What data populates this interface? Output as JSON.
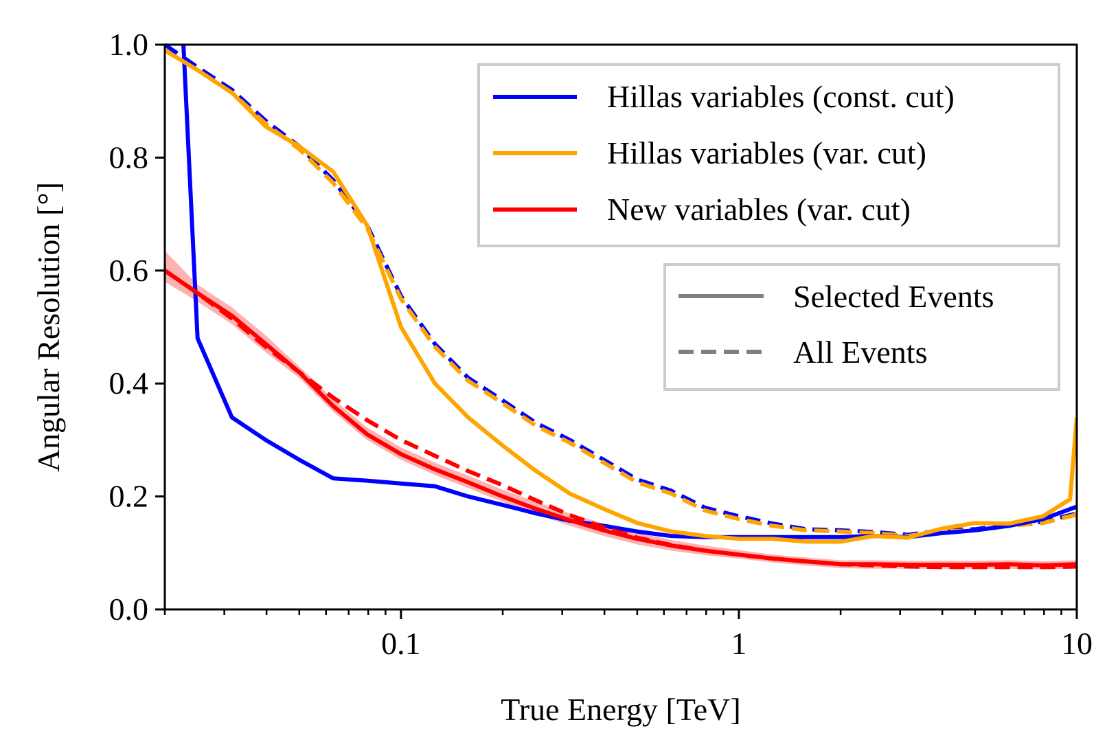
{
  "chart_data": {
    "type": "line",
    "xscale": "log",
    "xlabel": "True Energy [TeV]",
    "ylabel": "Angular Resolution [°]",
    "xlim": [
      0.02,
      10
    ],
    "ylim": [
      0.0,
      1.0
    ],
    "x_ticks": [
      {
        "value": 0.1,
        "label": "0.1"
      },
      {
        "value": 1,
        "label": "1"
      },
      {
        "value": 10,
        "label": "10"
      }
    ],
    "y_ticks": [
      {
        "value": 0.0,
        "label": "0.0"
      },
      {
        "value": 0.2,
        "label": "0.2"
      },
      {
        "value": 0.4,
        "label": "0.4"
      },
      {
        "value": 0.6,
        "label": "0.6"
      },
      {
        "value": 0.8,
        "label": "0.8"
      },
      {
        "value": 1.0,
        "label": "1.0"
      }
    ],
    "legend_methods": [
      {
        "label": "Hillas variables (const. cut)",
        "color": "#0000ff"
      },
      {
        "label": "Hillas variables (var. cut)",
        "color": "#ffa500"
      },
      {
        "label": "New variables (var. cut)",
        "color": "#ff0000"
      }
    ],
    "legend_styles": [
      {
        "label": "Selected Events",
        "style": "solid"
      },
      {
        "label": "All Events",
        "style": "dashed"
      }
    ],
    "series": [
      {
        "name": "Hillas variables (const. cut) - All Events",
        "color": "#0000ff",
        "style": "dashed",
        "x": [
          0.02,
          0.025,
          0.0316,
          0.0398,
          0.05,
          0.063,
          0.0794,
          0.1,
          0.126,
          0.158,
          0.2,
          0.251,
          0.316,
          0.398,
          0.5,
          0.631,
          0.794,
          1.0,
          1.26,
          1.58,
          2.0,
          2.51,
          3.16,
          3.98,
          5.0,
          6.31,
          7.94,
          10.0
        ],
        "values": [
          1.0,
          0.96,
          0.92,
          0.865,
          0.82,
          0.76,
          0.68,
          0.555,
          0.47,
          0.41,
          0.37,
          0.33,
          0.3,
          0.265,
          0.23,
          0.21,
          0.18,
          0.165,
          0.152,
          0.142,
          0.14,
          0.137,
          0.132,
          0.14,
          0.142,
          0.15,
          0.155,
          0.17
        ]
      },
      {
        "name": "Hillas variables (var. cut) - All Events",
        "color": "#ffa500",
        "style": "dashed",
        "x": [
          0.02,
          0.025,
          0.0316,
          0.0398,
          0.05,
          0.063,
          0.0794,
          0.1,
          0.126,
          0.158,
          0.2,
          0.251,
          0.316,
          0.398,
          0.5,
          0.631,
          0.794,
          1.0,
          1.26,
          1.58,
          2.0,
          2.51,
          3.16,
          3.98,
          5.0,
          6.31,
          7.94,
          10.0
        ],
        "values": [
          0.99,
          0.955,
          0.915,
          0.86,
          0.815,
          0.755,
          0.675,
          0.55,
          0.465,
          0.405,
          0.365,
          0.325,
          0.295,
          0.26,
          0.225,
          0.205,
          0.175,
          0.16,
          0.148,
          0.14,
          0.138,
          0.135,
          0.13,
          0.138,
          0.14,
          0.148,
          0.153,
          0.168
        ]
      },
      {
        "name": "Hillas variables (const. cut) - Selected Events",
        "color": "#0000ff",
        "style": "solid",
        "x": [
          0.0227,
          0.025,
          0.0316,
          0.0398,
          0.05,
          0.063,
          0.0794,
          0.1,
          0.126,
          0.158,
          0.2,
          0.251,
          0.316,
          0.398,
          0.5,
          0.631,
          0.794,
          1.0,
          1.26,
          1.58,
          2.0,
          2.51,
          3.16,
          3.98,
          5.0,
          6.31,
          7.94,
          10.0
        ],
        "values": [
          1.0,
          0.48,
          0.34,
          0.3,
          0.265,
          0.232,
          0.228,
          0.223,
          0.218,
          0.2,
          0.185,
          0.17,
          0.157,
          0.148,
          0.138,
          0.13,
          0.128,
          0.128,
          0.128,
          0.128,
          0.128,
          0.13,
          0.128,
          0.135,
          0.14,
          0.148,
          0.16,
          0.182
        ]
      },
      {
        "name": "Hillas variables (var. cut) - Selected Events",
        "color": "#ffa500",
        "style": "solid",
        "x": [
          0.02,
          0.025,
          0.0316,
          0.0398,
          0.05,
          0.063,
          0.0794,
          0.1,
          0.126,
          0.158,
          0.2,
          0.251,
          0.316,
          0.398,
          0.5,
          0.631,
          0.794,
          1.0,
          1.26,
          1.58,
          2.0,
          2.51,
          3.16,
          3.98,
          5.0,
          6.31,
          7.94,
          9.55,
          10.0
        ],
        "values": [
          0.99,
          0.955,
          0.915,
          0.855,
          0.82,
          0.775,
          0.68,
          0.5,
          0.4,
          0.34,
          0.29,
          0.245,
          0.205,
          0.178,
          0.153,
          0.138,
          0.13,
          0.125,
          0.125,
          0.12,
          0.12,
          0.13,
          0.127,
          0.143,
          0.153,
          0.152,
          0.165,
          0.195,
          0.34
        ]
      },
      {
        "name": "New variables (var. cut) - Selected Events",
        "color": "#ff0000",
        "style": "solid",
        "x": [
          0.02,
          0.025,
          0.0316,
          0.0398,
          0.05,
          0.063,
          0.0794,
          0.1,
          0.126,
          0.158,
          0.2,
          0.251,
          0.316,
          0.398,
          0.5,
          0.631,
          0.794,
          1.0,
          1.26,
          1.58,
          2.0,
          2.51,
          3.16,
          3.98,
          5.0,
          6.31,
          7.94,
          10.0
        ],
        "values": [
          0.6,
          0.56,
          0.52,
          0.47,
          0.42,
          0.36,
          0.31,
          0.275,
          0.248,
          0.225,
          0.2,
          0.178,
          0.158,
          0.14,
          0.125,
          0.113,
          0.104,
          0.097,
          0.09,
          0.085,
          0.08,
          0.08,
          0.079,
          0.079,
          0.079,
          0.08,
          0.078,
          0.08
        ]
      },
      {
        "name": "New variables (var. cut) - All Events",
        "color": "#ff0000",
        "style": "dashed",
        "x": [
          0.02,
          0.025,
          0.0316,
          0.0398,
          0.05,
          0.063,
          0.0794,
          0.1,
          0.126,
          0.158,
          0.2,
          0.251,
          0.316,
          0.398,
          0.5,
          0.631,
          0.794,
          1.0,
          1.26,
          1.58,
          2.0,
          2.51,
          3.16,
          3.98,
          5.0,
          6.31,
          7.94,
          10.0
        ],
        "values": [
          0.6,
          0.56,
          0.515,
          0.465,
          0.42,
          0.375,
          0.335,
          0.3,
          0.272,
          0.245,
          0.22,
          0.193,
          0.167,
          0.145,
          0.127,
          0.114,
          0.104,
          0.097,
          0.09,
          0.085,
          0.08,
          0.078,
          0.076,
          0.075,
          0.075,
          0.075,
          0.075,
          0.076
        ]
      }
    ],
    "red_band": {
      "x": [
        0.02,
        0.025,
        0.0316,
        0.0398,
        0.05,
        0.063,
        0.0794,
        0.1,
        0.126,
        0.158,
        0.2,
        0.251,
        0.316,
        0.398,
        0.5,
        0.631,
        0.794,
        1.0,
        1.26,
        1.58,
        2.0,
        2.51,
        3.16,
        3.98,
        5.0,
        6.31,
        7.94,
        10.0
      ],
      "lower": [
        0.58,
        0.545,
        0.505,
        0.455,
        0.41,
        0.35,
        0.3,
        0.265,
        0.238,
        0.215,
        0.19,
        0.168,
        0.148,
        0.13,
        0.115,
        0.104,
        0.096,
        0.09,
        0.083,
        0.078,
        0.073,
        0.072,
        0.072,
        0.072,
        0.072,
        0.072,
        0.071,
        0.072
      ],
      "upper": [
        0.635,
        0.575,
        0.535,
        0.485,
        0.43,
        0.372,
        0.322,
        0.287,
        0.26,
        0.237,
        0.212,
        0.19,
        0.17,
        0.152,
        0.136,
        0.123,
        0.113,
        0.105,
        0.097,
        0.092,
        0.087,
        0.087,
        0.086,
        0.086,
        0.086,
        0.087,
        0.085,
        0.087
      ]
    }
  }
}
